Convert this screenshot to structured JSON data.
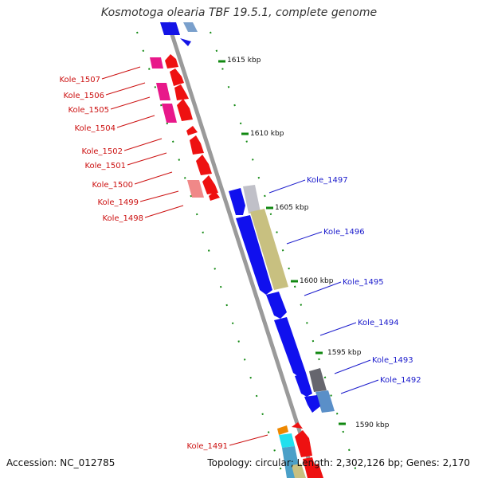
{
  "title": "Kosmotoga olearia TBF 19.5.1, complete genome",
  "footer": {
    "accession": "Accession: NC_012785",
    "summary": "Topology: circular; Length: 2,302,126 bp; Genes: 2,170"
  },
  "scale_labels": [
    "1615 kbp",
    "1610 kbp",
    "1605 kbp",
    "1600 kbp",
    "1595 kbp",
    "1590 kbp"
  ],
  "genes_reverse": [
    "Kole_1507",
    "Kole_1506",
    "Kole_1505",
    "Kole_1504",
    "Kole_1502",
    "Kole_1501",
    "Kole_1500",
    "Kole_1499",
    "Kole_1498",
    "Kole_1491"
  ],
  "genes_forward": [
    "Kole_1497",
    "Kole_1496",
    "Kole_1495",
    "Kole_1494",
    "Kole_1493",
    "Kole_1492"
  ],
  "colors": {
    "forward_strand": "#1010ee",
    "reverse_strand": "#ee1111",
    "reverse_label": "#cc1111",
    "forward_label": "#1a1acc",
    "backbone": "#888888",
    "tick": "#118811"
  }
}
